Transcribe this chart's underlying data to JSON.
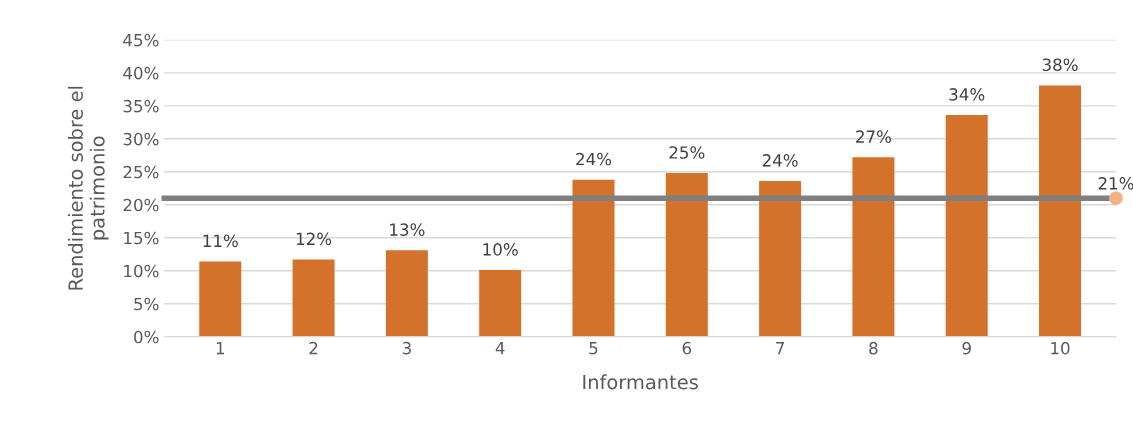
{
  "chart_data": {
    "type": "bar",
    "categories": [
      "1",
      "2",
      "3",
      "4",
      "5",
      "6",
      "7",
      "8",
      "9",
      "10"
    ],
    "values": [
      11.4,
      11.7,
      13.1,
      10.1,
      23.8,
      24.8,
      23.6,
      27.2,
      33.6,
      38.1
    ],
    "value_labels": [
      "11%",
      "12%",
      "13%",
      "10%",
      "24%",
      "25%",
      "24%",
      "27%",
      "34%",
      "38%"
    ],
    "color": "#d4712b",
    "xlabel": "Informantes",
    "ylabel": "Rendimiento sobre el\npatrimonio",
    "ylim": [
      0,
      45
    ],
    "yticks": [
      {
        "value": 0,
        "label": "0%"
      },
      {
        "value": 5,
        "label": "5%"
      },
      {
        "value": 10,
        "label": "10%"
      },
      {
        "value": 15,
        "label": "15%"
      },
      {
        "value": 20,
        "label": "20%"
      },
      {
        "value": 25,
        "label": "25%"
      },
      {
        "value": 30,
        "label": "30%"
      },
      {
        "value": 35,
        "label": "35%"
      },
      {
        "value": 40,
        "label": "40%"
      },
      {
        "value": 45,
        "label": "45%"
      }
    ],
    "grid": "y",
    "ref_lines": [
      {
        "axis": "y",
        "value": 21,
        "label": "21%",
        "color": "#7f7f7f"
      }
    ]
  }
}
